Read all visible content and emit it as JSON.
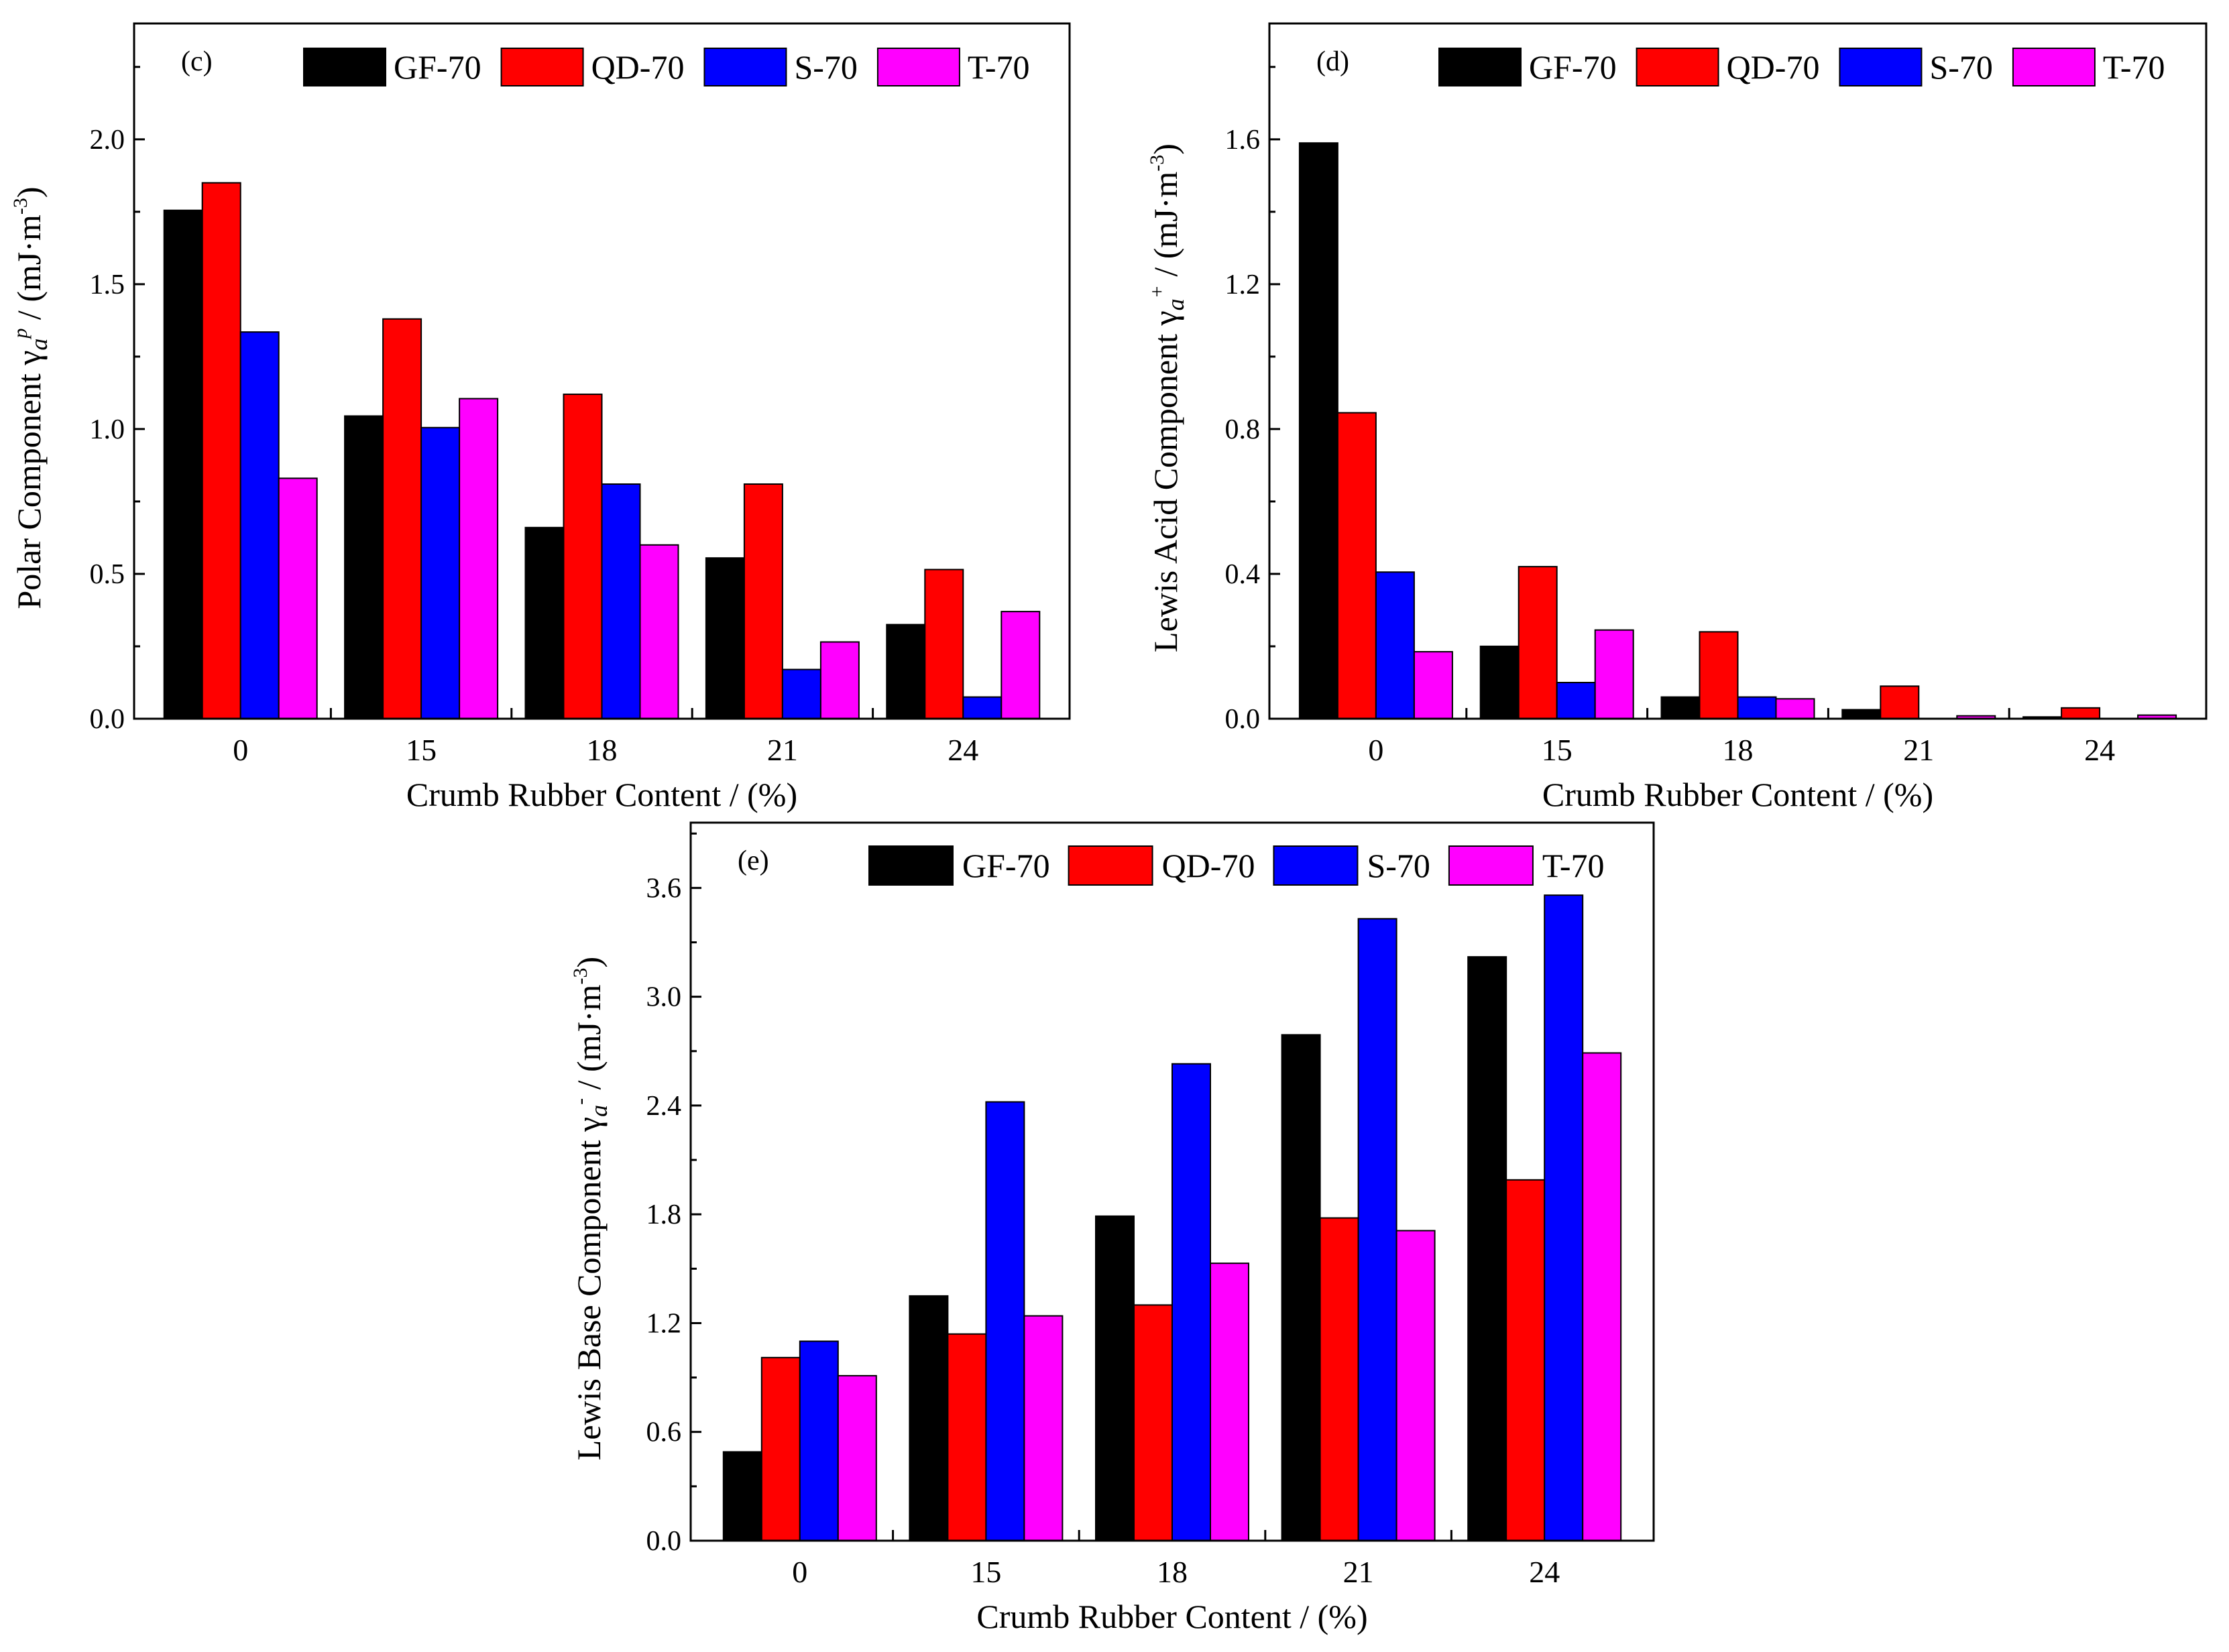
{
  "chart_data": [
    {
      "type": "bar",
      "panel_label": "(c)",
      "categories": [
        "0",
        "15",
        "18",
        "21",
        "24"
      ],
      "series": [
        {
          "name": "GF-70",
          "values": [
            1.755,
            1.045,
            0.66,
            0.555,
            0.325
          ]
        },
        {
          "name": "QD-70",
          "values": [
            1.85,
            1.38,
            1.12,
            0.81,
            0.515
          ]
        },
        {
          "name": "S-70",
          "values": [
            1.335,
            1.005,
            0.81,
            0.17,
            0.075
          ]
        },
        {
          "name": "T-70",
          "values": [
            0.83,
            1.105,
            0.6,
            0.265,
            0.37
          ]
        }
      ],
      "xlabel": "Crumb Rubber Content / (%)",
      "ylabel": {
        "prefix": "Polar Component  γ",
        "sub": "a",
        "sup": "p",
        "suffix": " / (mJ·m",
        "unit_sup": "-3",
        "close": ")"
      },
      "ylim": [
        0,
        2.4
      ],
      "yticks": [
        "0.0",
        "0.5",
        "1.0",
        "1.5",
        "2.0"
      ],
      "ytick_values": [
        0,
        0.5,
        1.0,
        1.5,
        2.0
      ],
      "legend_position": "top"
    },
    {
      "type": "bar",
      "panel_label": "(d)",
      "categories": [
        "0",
        "15",
        "18",
        "21",
        "24"
      ],
      "series": [
        {
          "name": "GF-70",
          "values": [
            1.59,
            0.2,
            0.06,
            0.025,
            0.005
          ]
        },
        {
          "name": "QD-70",
          "values": [
            0.845,
            0.42,
            0.24,
            0.09,
            0.03
          ]
        },
        {
          "name": "S-70",
          "values": [
            0.405,
            0.1,
            0.06,
            0.0,
            0.0
          ]
        },
        {
          "name": "T-70",
          "values": [
            0.185,
            0.245,
            0.055,
            0.008,
            0.01
          ]
        }
      ],
      "xlabel": "Crumb Rubber Content / (%)",
      "ylabel": {
        "prefix": "Lewis Acid Component γ",
        "sub": "a",
        "sup": "+",
        "suffix": "  / (mJ·m",
        "unit_sup": "-3",
        "close": ")"
      },
      "ylim": [
        0,
        1.92
      ],
      "yticks": [
        "0.0",
        "0.4",
        "0.8",
        "1.2",
        "1.6"
      ],
      "ytick_values": [
        0,
        0.4,
        0.8,
        1.2,
        1.6
      ],
      "legend_position": "top"
    },
    {
      "type": "bar",
      "panel_label": "(e)",
      "categories": [
        "0",
        "15",
        "18",
        "21",
        "24"
      ],
      "series": [
        {
          "name": "GF-70",
          "values": [
            0.49,
            1.35,
            1.79,
            2.79,
            3.22
          ]
        },
        {
          "name": "QD-70",
          "values": [
            1.01,
            1.14,
            1.3,
            1.78,
            1.99
          ]
        },
        {
          "name": "S-70",
          "values": [
            1.1,
            2.42,
            2.63,
            3.43,
            3.56
          ]
        },
        {
          "name": "T-70",
          "values": [
            0.91,
            1.24,
            1.53,
            1.71,
            2.69
          ]
        }
      ],
      "xlabel": "Crumb Rubber Content / (%)",
      "ylabel": {
        "prefix": "Lewis Base Component  γ",
        "sub": "a",
        "sup": "-",
        "suffix": "  / (mJ·m",
        "unit_sup": "-3",
        "close": ")"
      },
      "ylim": [
        0,
        3.96
      ],
      "yticks": [
        "0.0",
        "0.6",
        "1.2",
        "1.8",
        "2.4",
        "3.0",
        "3.6"
      ],
      "ytick_values": [
        0,
        0.6,
        1.2,
        1.8,
        2.4,
        3.0,
        3.6
      ],
      "legend_position": "top"
    }
  ],
  "colors": {
    "GF-70": "#000000",
    "QD-70": "#ff0000",
    "S-70": "#0000ff",
    "T-70": "#ff00ff"
  }
}
